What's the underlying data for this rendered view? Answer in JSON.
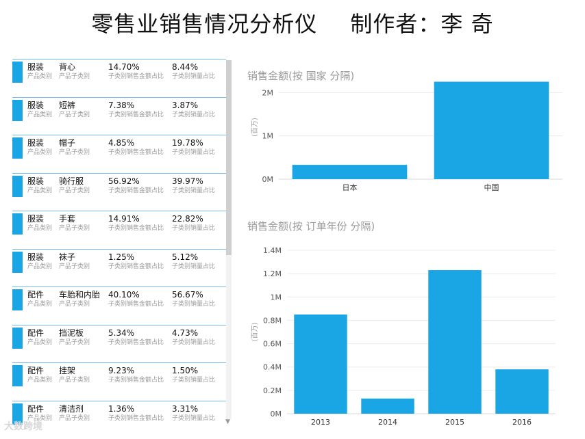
{
  "header": {
    "title": "零售业销售情况分析仪",
    "author": "制作者：李 奇"
  },
  "labels": {
    "category": "产品类别",
    "subcategory": "产品子类别",
    "amount_share": "子类别销售金额占比",
    "volume_share": "子类别销量占比"
  },
  "rows": [
    {
      "category": "服装",
      "subcategory": "背心",
      "amount_share": "14.70%",
      "volume_share": "8.44%"
    },
    {
      "category": "服装",
      "subcategory": "短裤",
      "amount_share": "7.38%",
      "volume_share": "3.87%"
    },
    {
      "category": "服装",
      "subcategory": "帽子",
      "amount_share": "4.85%",
      "volume_share": "19.78%"
    },
    {
      "category": "服装",
      "subcategory": "骑行服",
      "amount_share": "56.92%",
      "volume_share": "39.97%"
    },
    {
      "category": "服装",
      "subcategory": "手套",
      "amount_share": "14.91%",
      "volume_share": "22.82%"
    },
    {
      "category": "服装",
      "subcategory": "袜子",
      "amount_share": "1.25%",
      "volume_share": "5.12%"
    },
    {
      "category": "配件",
      "subcategory": "车胎和内胎",
      "amount_share": "40.10%",
      "volume_share": "56.67%"
    },
    {
      "category": "配件",
      "subcategory": "挡泥板",
      "amount_share": "5.34%",
      "volume_share": "4.73%"
    },
    {
      "category": "配件",
      "subcategory": "挂架",
      "amount_share": "9.23%",
      "volume_share": "1.50%"
    },
    {
      "category": "配件",
      "subcategory": "清洁剂",
      "amount_share": "1.36%",
      "volume_share": "3.31%"
    }
  ],
  "watermark": "大数跨境",
  "chart_data": [
    {
      "type": "bar",
      "title": "销售金额(按 国家 分隔)",
      "ylabel": "(百万)",
      "categories": [
        "日本",
        "中国"
      ],
      "values": [
        0.33,
        2.25
      ],
      "ylim": [
        0,
        2.4
      ],
      "yticks": [
        0,
        1,
        2
      ],
      "ytick_labels": [
        "0M",
        "1M",
        "2M"
      ],
      "grid": true,
      "color": "#1aa6e4"
    },
    {
      "type": "bar",
      "title": "销售金额(按 订单年份 分隔)",
      "ylabel": "(百万)",
      "categories": [
        "2013",
        "2014",
        "2015",
        "2016"
      ],
      "values": [
        0.85,
        0.13,
        1.23,
        0.38
      ],
      "ylim": [
        0,
        1.4
      ],
      "yticks": [
        0,
        0.2,
        0.4,
        0.6,
        0.8,
        1.0,
        1.2,
        1.4
      ],
      "ytick_labels": [
        "0M",
        "0.2M",
        "0.4M",
        "0.6M",
        "0.8M",
        "1M",
        "1.2M",
        "1.4M"
      ],
      "grid": true,
      "color": "#1aa6e4"
    }
  ]
}
